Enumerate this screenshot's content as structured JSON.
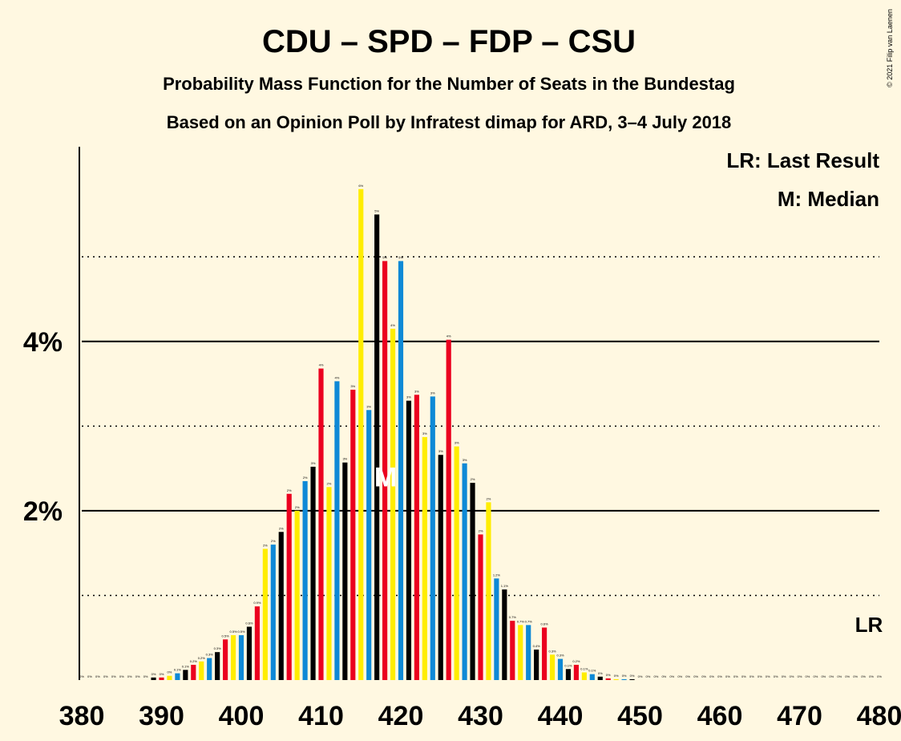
{
  "chart_data": {
    "type": "bar",
    "title": "CDU – SPD – FDP – CSU",
    "subtitle1": "Probability Mass Function for the Number of Seats in the Bundestag",
    "subtitle2": "Based on an Opinion Poll by Infratest dimap for ARD, 3–4 July 2018",
    "copyright": "© 2021 Filip van Laenen",
    "legend": {
      "lr": "LR: Last Result",
      "m": "M: Median",
      "lr_marker": "LR",
      "median_marker": "M"
    },
    "xlim": [
      380,
      480
    ],
    "ylim": [
      0,
      6.3
    ],
    "x_ticks": [
      "380",
      "390",
      "400",
      "410",
      "420",
      "430",
      "440",
      "450",
      "460",
      "470",
      "480"
    ],
    "y_ticks": [
      {
        "value": 2,
        "label": "2%"
      },
      {
        "value": 4,
        "label": "4%"
      }
    ],
    "y_dotted_gridlines": [
      1,
      3,
      5
    ],
    "median_seat": 418,
    "last_result_seat": 480,
    "series_colors": [
      "#0E89D6",
      "#000000",
      "#EB001F",
      "#FFED00"
    ],
    "x": [
      380,
      381,
      382,
      383,
      384,
      385,
      386,
      387,
      388,
      389,
      390,
      391,
      392,
      393,
      394,
      395,
      396,
      397,
      398,
      399,
      400,
      401,
      402,
      403,
      404,
      405,
      406,
      407,
      408,
      409,
      410,
      411,
      412,
      413,
      414,
      415,
      416,
      417,
      418,
      419,
      420,
      421,
      422,
      423,
      424,
      425,
      426,
      427,
      428,
      429,
      430,
      431,
      432,
      433,
      434,
      435,
      436,
      437,
      438,
      439,
      440,
      441,
      442,
      443,
      444,
      445,
      446,
      447,
      448,
      449,
      450,
      451,
      452,
      453,
      454,
      455,
      456,
      457,
      458,
      459,
      460,
      461,
      462,
      463,
      464,
      465,
      466,
      467,
      468,
      469,
      470,
      471,
      472,
      473,
      474,
      475,
      476,
      477,
      478,
      479,
      480
    ],
    "values": [
      0,
      0,
      0,
      0,
      0,
      0,
      0,
      0,
      0,
      0.03,
      0.03,
      0.05,
      0.08,
      0.12,
      0.18,
      0.22,
      0.26,
      0.33,
      0.48,
      0.53,
      0.53,
      0.63,
      0.87,
      1.55,
      1.6,
      1.75,
      2.2,
      2,
      2.35,
      2.52,
      3.68,
      2.28,
      3.53,
      2.57,
      3.43,
      5.8,
      3.19,
      5.5,
      4.95,
      4.15,
      4.95,
      3.3,
      3.37,
      2.87,
      3.35,
      2.66,
      4.02,
      2.76,
      2.56,
      2.33,
      1.72,
      2.1,
      1.2,
      1.07,
      0.7,
      0.65,
      0.65,
      0.36,
      0.62,
      0.3,
      0.25,
      0.13,
      0.18,
      0.09,
      0.07,
      0.04,
      0.02,
      0.01,
      0.01,
      0.01,
      0,
      0,
      0,
      0,
      0,
      0,
      0,
      0,
      0,
      0,
      0,
      0,
      0,
      0,
      0,
      0,
      0,
      0,
      0,
      0,
      0,
      0,
      0,
      0,
      0,
      0,
      0,
      0,
      0,
      0,
      0
    ],
    "labels": [
      "0%",
      "0%",
      "0%",
      "0%",
      "0%",
      "0%",
      "0%",
      "0%",
      "0%",
      "0%",
      "0%",
      "0%",
      "0.1%",
      "0.1%",
      "0.2%",
      "0.2%",
      "0.3%",
      "0.3%",
      "0.5%",
      "0.5%",
      "0.5%",
      "0.6%",
      "0.9%",
      "2%",
      "2%",
      "2%",
      "2%",
      "2%",
      "2%",
      "3%",
      "4%",
      "2%",
      "4%",
      "3%",
      "3%",
      "6%",
      "3%",
      "5%",
      "5%",
      "4%",
      "5%",
      "3%",
      "3%",
      "3%",
      "3%",
      "3%",
      "4%",
      "3%",
      "3%",
      "2%",
      "2%",
      "2%",
      "1.2%",
      "1.1%",
      "0.7%",
      "0.7%",
      "0.7%",
      "0.4%",
      "0.6%",
      "0.3%",
      "0.3%",
      "0.1%",
      "0.2%",
      "0.1%",
      "0.1%",
      "0%",
      "0%",
      "0%",
      "0%",
      "0%",
      "0%",
      "0%",
      "0%",
      "0%",
      "0%",
      "0%",
      "0%",
      "0%",
      "0%",
      "0%",
      "0%",
      "0%",
      "0%",
      "0%",
      "0%",
      "0%",
      "0%",
      "0%",
      "0%",
      "0%",
      "0%",
      "0%",
      "0%",
      "0%",
      "0%",
      "0%",
      "0%",
      "0%",
      "0%",
      "0%",
      "0%"
    ]
  }
}
